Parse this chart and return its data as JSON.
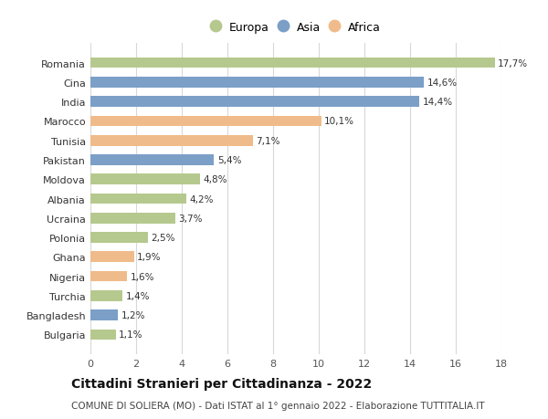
{
  "countries": [
    "Romania",
    "Cina",
    "India",
    "Marocco",
    "Tunisia",
    "Pakistan",
    "Moldova",
    "Albania",
    "Ucraina",
    "Polonia",
    "Ghana",
    "Nigeria",
    "Turchia",
    "Bangladesh",
    "Bulgaria"
  ],
  "values": [
    17.7,
    14.6,
    14.4,
    10.1,
    7.1,
    5.4,
    4.8,
    4.2,
    3.7,
    2.5,
    1.9,
    1.6,
    1.4,
    1.2,
    1.1
  ],
  "labels": [
    "17,7%",
    "14,6%",
    "14,4%",
    "10,1%",
    "7,1%",
    "5,4%",
    "4,8%",
    "4,2%",
    "3,7%",
    "2,5%",
    "1,9%",
    "1,6%",
    "1,4%",
    "1,2%",
    "1,1%"
  ],
  "continents": [
    "Europa",
    "Asia",
    "Asia",
    "Africa",
    "Africa",
    "Asia",
    "Europa",
    "Europa",
    "Europa",
    "Europa",
    "Africa",
    "Africa",
    "Europa",
    "Asia",
    "Europa"
  ],
  "colors": {
    "Europa": "#b5c98e",
    "Asia": "#7b9fc7",
    "Africa": "#f0bb8a"
  },
  "legend_order": [
    "Europa",
    "Asia",
    "Africa"
  ],
  "title": "Cittadini Stranieri per Cittadinanza - 2022",
  "subtitle": "COMUNE DI SOLIERA (MO) - Dati ISTAT al 1° gennaio 2022 - Elaborazione TUTTITALIA.IT",
  "xlim": [
    0,
    18
  ],
  "xticks": [
    0,
    2,
    4,
    6,
    8,
    10,
    12,
    14,
    16,
    18
  ],
  "background_color": "#ffffff",
  "grid_color": "#d8d8d8",
  "bar_height": 0.55,
  "label_fontsize": 7.5,
  "title_fontsize": 10,
  "subtitle_fontsize": 7.5,
  "tick_fontsize": 8,
  "ytick_fontsize": 8
}
